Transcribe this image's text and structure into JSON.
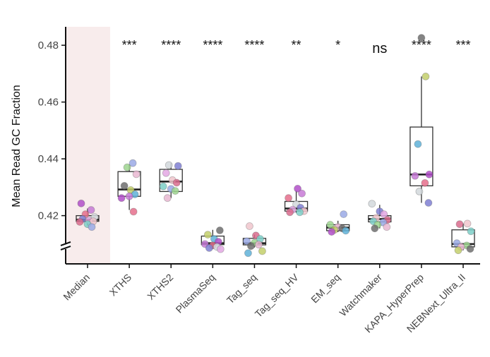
{
  "chart_data": {
    "type": "box",
    "title": "",
    "xlabel": "",
    "ylabel": "Mean Read GC Fraction",
    "ylim": [
      0.405,
      0.486
    ],
    "axis_break_below": 0.412,
    "y_ticks": [
      "0.42",
      "0.44",
      "0.46",
      "0.48"
    ],
    "y_tick_values": [
      0.42,
      0.44,
      0.46,
      0.48
    ],
    "highlight_color": "#f8ecec",
    "box_color": "#333333",
    "categories": [
      "Median",
      "XTHS",
      "XTHS2",
      "PlasmaSeq",
      "Tag_seq",
      "Tag_seq_HV",
      "EM_seq",
      "Watchmaker",
      "KAPA_HyperPrep",
      "NEBNext_Ultra_II"
    ],
    "significance": [
      "",
      "***",
      "****",
      "****",
      "****",
      "**",
      "*",
      "ns",
      "****",
      "***"
    ],
    "series": [
      {
        "name": "Median",
        "q1": 0.418,
        "median": 0.4186,
        "q3": 0.42,
        "whisker_low": 0.4165,
        "whisker_high": 0.4225,
        "points": [
          0.4243,
          0.422,
          0.4205,
          0.4195,
          0.4188,
          0.4183,
          0.418,
          0.4178,
          0.417,
          0.416
        ]
      },
      {
        "name": "XTHS",
        "q1": 0.4268,
        "median": 0.4292,
        "q3": 0.4355,
        "whisker_low": 0.422,
        "whisker_high": 0.438,
        "points": [
          0.4385,
          0.437,
          0.4346,
          0.4305,
          0.429,
          0.4275,
          0.4262,
          0.4268,
          0.4214
        ]
      },
      {
        "name": "XTHS2",
        "q1": 0.4285,
        "median": 0.432,
        "q3": 0.4363,
        "whisker_low": 0.4262,
        "whisker_high": 0.4385,
        "points": [
          0.4378,
          0.4375,
          0.435,
          0.4325,
          0.4316,
          0.4303,
          0.4294,
          0.4287,
          0.4262
        ]
      },
      {
        "name": "PlasmaSeq",
        "q1": 0.4098,
        "median": 0.4103,
        "q3": 0.4128,
        "whisker_low": 0.4083,
        "whisker_high": 0.415,
        "points": [
          0.4148,
          0.4133,
          0.4118,
          0.4108,
          0.41,
          0.4095,
          0.409,
          0.4086,
          0.4082
        ]
      },
      {
        "name": "Tag_seq",
        "q1": 0.4097,
        "median": 0.4103,
        "q3": 0.412,
        "whisker_low": 0.4088,
        "whisker_high": 0.4133,
        "points": [
          0.4163,
          0.413,
          0.4118,
          0.411,
          0.4104,
          0.4098,
          0.4093,
          0.4075,
          0.4068
        ]
      },
      {
        "name": "Tag_seq_HV",
        "q1": 0.4216,
        "median": 0.4225,
        "q3": 0.425,
        "whisker_low": 0.421,
        "whisker_high": 0.4288,
        "points": [
          0.4295,
          0.4278,
          0.4262,
          0.424,
          0.4228,
          0.4221,
          0.4216,
          0.4212,
          0.4212
        ]
      },
      {
        "name": "EM_seq",
        "q1": 0.4147,
        "median": 0.4158,
        "q3": 0.4168,
        "whisker_low": 0.4142,
        "whisker_high": 0.4182,
        "points": [
          0.4205,
          0.4168,
          0.416,
          0.4155,
          0.415,
          0.4147,
          0.4143
        ]
      },
      {
        "name": "Watchmaker",
        "q1": 0.4178,
        "median": 0.4188,
        "q3": 0.42,
        "whisker_low": 0.4155,
        "whisker_high": 0.4238,
        "points": [
          0.4242,
          0.4215,
          0.4205,
          0.4192,
          0.4185,
          0.418,
          0.4176,
          0.4168,
          0.416,
          0.4155
        ]
      },
      {
        "name": "KAPA_HyperPrep",
        "q1": 0.4305,
        "median": 0.4345,
        "q3": 0.4512,
        "whisker_low": 0.4245,
        "whisker_high": 0.469,
        "points": [
          0.4826,
          0.469,
          0.4452,
          0.4345,
          0.434,
          0.4315,
          0.4285,
          0.4245
        ]
      },
      {
        "name": "NEBNext_Ultra_II",
        "q1": 0.409,
        "median": 0.41,
        "q3": 0.415,
        "whisker_low": 0.4078,
        "whisker_high": 0.4172,
        "points": [
          0.4172,
          0.417,
          0.4145,
          0.4103,
          0.4095,
          0.409,
          0.4083,
          0.4078
        ]
      }
    ]
  }
}
